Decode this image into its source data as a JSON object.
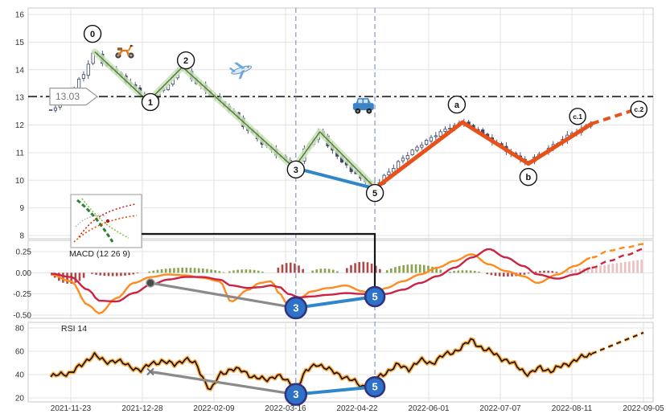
{
  "app": {
    "name": "stock-wave-annotation-chart"
  },
  "price_line": {
    "label": "13.03",
    "value": 13.03
  },
  "panels": {
    "macd_title": "MACD (12 26 9)",
    "rsi_title": "RSI 14"
  },
  "colors": {
    "candle": "#3b4668",
    "green_band": "#cde3bc",
    "green_edge": "#557f3a",
    "blue": "#2f86c8",
    "orange_wave": "#e8521a",
    "macd_fast": "#ff8a1e",
    "macd_signal": "#cc2244",
    "hist_red": "#aa3333",
    "hist_green": "#7a9a3a",
    "hist_pink": "#dd8888",
    "marker_fill": "#2e72c8",
    "marker_ring": "#33307e",
    "gray": "#8a8a8a",
    "grid": "#e3e3e3",
    "border": "#c8c8c8",
    "vline": "#8897bb",
    "rsi_glow": "#ffa028",
    "hline": "#222222"
  },
  "axes": {
    "x_ticks": [
      {
        "label": "2021-11-23",
        "t": 0
      },
      {
        "label": "2021-12-28",
        "t": 12.5
      },
      {
        "label": "2022-02-09",
        "t": 25
      },
      {
        "label": "2022-03-16",
        "t": 37.5
      },
      {
        "label": "2022-04-22",
        "t": 50
      },
      {
        "label": "2022-06-01",
        "t": 62.5
      },
      {
        "label": "2022-07-07",
        "t": 75
      },
      {
        "label": "2022-08-11",
        "t": 87.5
      },
      {
        "label": "2022-09-05",
        "t": 100
      }
    ],
    "price_ticks": [
      {
        "label": "16",
        "v": 16
      },
      {
        "label": "15",
        "v": 15
      },
      {
        "label": "14",
        "v": 14
      },
      {
        "label": "13",
        "v": 13
      },
      {
        "label": "12",
        "v": 12
      },
      {
        "label": "11",
        "v": 11
      },
      {
        "label": "10",
        "v": 10
      },
      {
        "label": "9",
        "v": 9
      },
      {
        "label": "8",
        "v": 8
      }
    ],
    "macd_ticks": [
      {
        "label": "0.25",
        "v": 0.25
      },
      {
        "label": "0.00",
        "v": 0
      },
      {
        "label": "-0.25",
        "v": -0.25
      },
      {
        "label": "-0.50",
        "v": -0.5
      }
    ],
    "rsi_ticks": [
      {
        "label": "80",
        "v": 80
      },
      {
        "label": "60",
        "v": 60
      },
      {
        "label": "40",
        "v": 40
      },
      {
        "label": "20",
        "v": 20
      }
    ]
  },
  "chart_data": [
    {
      "type": "candlestick",
      "panel": "price",
      "x_axis": {
        "unit": "t = % of axis from 2021-11-23 (0) to 2022-09-05 (100)",
        "ticks": [
          "2021-11-23",
          "2021-12-28",
          "2022-02-09",
          "2022-03-16",
          "2022-04-22",
          "2022-06-01",
          "2022-07-07",
          "2022-08-11",
          "2022-09-05"
        ]
      },
      "ylim": [
        8,
        16
      ],
      "yticks": [
        16,
        15,
        14,
        13,
        12,
        11,
        10,
        9,
        8
      ],
      "hline": 13.03,
      "close_path": {
        "t": [
          -3.5,
          0,
          2,
          4.2,
          6,
          8,
          10,
          13.5,
          16,
          19.5,
          22,
          25,
          28,
          31,
          34,
          36.5,
          39,
          41.5,
          43.5,
          45.5,
          47.5,
          49.5,
          51.5,
          53,
          55.5,
          58,
          60.5,
          63,
          65.5,
          68.4,
          71,
          74,
          77,
          79.5,
          82,
          84.5,
          87.5,
          91
        ],
        "price": [
          12.55,
          13.1,
          13.8,
          14.65,
          14.15,
          13.9,
          13.5,
          12.85,
          13.3,
          14.1,
          13.5,
          13.0,
          12.5,
          11.8,
          11.25,
          10.85,
          10.45,
          11.3,
          11.75,
          11.1,
          10.65,
          10.25,
          9.95,
          9.75,
          10.3,
          10.8,
          11.2,
          11.55,
          11.85,
          12.1,
          11.8,
          11.35,
          10.95,
          10.65,
          10.95,
          11.3,
          11.7,
          12.05
        ]
      },
      "pivots": [
        {
          "label": "0",
          "date": "2021-12-06",
          "price": 14.65
        },
        {
          "label": "1",
          "date": "2021-12-28",
          "price": 12.85
        },
        {
          "label": "2",
          "date": "2022-01-12",
          "price": 14.1
        },
        {
          "label": "3",
          "date": "2022-03-16",
          "price": 10.45
        },
        {
          "label": "5",
          "date": "2022-04-22",
          "price": 9.75
        },
        {
          "label": "a",
          "date": "2022-06-08",
          "price": 12.1
        },
        {
          "label": "b",
          "date": "2022-07-07",
          "price": 10.6
        },
        {
          "label": "c.1",
          "date": "2022-08-11",
          "price": 12.05
        },
        {
          "label": "c.2",
          "date": "2022-09-05",
          "price": 12.6
        }
      ],
      "overlays": {
        "green_path": [
          [
            4.2,
            14.65
          ],
          [
            13.5,
            12.85
          ],
          [
            19.5,
            14.1
          ],
          [
            39,
            10.45
          ],
          [
            43.5,
            11.75
          ],
          [
            53,
            9.75
          ]
        ],
        "blue_path": [
          [
            39,
            10.45
          ],
          [
            53.1,
            9.7
          ]
        ],
        "orange_solid": [
          [
            53.1,
            9.7
          ],
          [
            68.4,
            12.1
          ],
          [
            79.9,
            10.6
          ],
          [
            91,
            12.05
          ]
        ],
        "orange_dashed": [
          [
            91,
            12.05
          ],
          [
            99.5,
            12.62
          ]
        ]
      }
    },
    {
      "type": "line",
      "panel": "macd",
      "title": "MACD (12 26 9)",
      "ylim": [
        -0.55,
        0.37
      ],
      "yticks": [
        0.25,
        0,
        -0.25,
        -0.5
      ],
      "solid_until_t": 91,
      "t": [
        -3.5,
        0,
        3,
        5,
        8,
        11,
        14,
        17,
        20,
        23,
        26,
        28,
        31,
        33,
        35,
        36.5,
        38,
        40,
        42,
        45,
        48,
        51,
        53,
        55,
        58,
        61,
        64,
        67,
        70,
        73,
        76,
        79,
        81.5,
        85,
        88,
        91,
        94,
        97,
        100
      ],
      "series": [
        {
          "name": "macd",
          "color": "#ff8a1e",
          "values": [
            -0.02,
            -0.1,
            -0.38,
            -0.48,
            -0.3,
            -0.12,
            -0.05,
            -0.02,
            -0.03,
            -0.06,
            -0.1,
            -0.34,
            -0.2,
            -0.12,
            -0.1,
            -0.25,
            -0.39,
            -0.3,
            -0.22,
            -0.18,
            -0.15,
            -0.22,
            -0.26,
            -0.18,
            -0.1,
            -0.02,
            0.06,
            0.14,
            0.22,
            0.1,
            0.02,
            -0.04,
            -0.12,
            -0.02,
            0.08,
            0.18,
            0.26,
            0.3,
            0.34
          ]
        },
        {
          "name": "signal",
          "color": "#cc2244",
          "values": [
            -0.01,
            -0.05,
            -0.2,
            -0.33,
            -0.34,
            -0.24,
            -0.14,
            -0.08,
            -0.05,
            -0.05,
            -0.08,
            -0.15,
            -0.18,
            -0.17,
            -0.15,
            -0.17,
            -0.25,
            -0.29,
            -0.28,
            -0.26,
            -0.24,
            -0.25,
            -0.27,
            -0.25,
            -0.2,
            -0.12,
            -0.04,
            0.06,
            0.18,
            0.28,
            0.18,
            0.08,
            -0.02,
            -0.07,
            -0.02,
            0.06,
            0.14,
            0.21,
            0.28
          ]
        }
      ],
      "histogram": [
        {
          "t0": -3.5,
          "t1": 3,
          "peak": -0.13,
          "color": "#aa3333"
        },
        {
          "t0": 3,
          "t1": 12,
          "peak": -0.04,
          "color": "#aa3333"
        },
        {
          "t0": 13,
          "t1": 27,
          "peak": 0.06,
          "color": "#7a9a3a"
        },
        {
          "t0": 27,
          "t1": 34,
          "peak": 0.04,
          "color": "#7a9a3a"
        },
        {
          "t0": 35.5,
          "t1": 41,
          "peak": 0.12,
          "color": "#aa3333"
        },
        {
          "t0": 41.5,
          "t1": 47,
          "peak": 0.05,
          "color": "#7a9a3a"
        },
        {
          "t0": 47.5,
          "t1": 54.5,
          "peak": 0.13,
          "color": "#aa3333"
        },
        {
          "t0": 54.5,
          "t1": 65.5,
          "peak": 0.1,
          "color": "#7a9a3a"
        },
        {
          "t0": 65.5,
          "t1": 72,
          "peak": 0.03,
          "color": "#7a9a3a"
        },
        {
          "t0": 72,
          "t1": 80.3,
          "peak": -0.045,
          "color": "#aa3333"
        },
        {
          "t0": 80.5,
          "t1": 85.5,
          "peak": 0.025,
          "color": "#aa3333"
        },
        {
          "t0": 86,
          "t1": 100,
          "v0": 0.02,
          "v1": 0.16,
          "ramp": true,
          "color": "#dd8888"
        }
      ]
    },
    {
      "type": "line",
      "panel": "rsi",
      "title": "RSI 14",
      "ylim": [
        15,
        85
      ],
      "yticks": [
        80,
        60,
        40,
        20
      ],
      "solid_until_t": 91,
      "t": [
        -3.5,
        0,
        2,
        4,
        6,
        8,
        10,
        12.5,
        14,
        16,
        18,
        20,
        22,
        23,
        24.5,
        26,
        28,
        30,
        32,
        34,
        36,
        38,
        39.5,
        41,
        43,
        45,
        47,
        49,
        51,
        53,
        55,
        57,
        59,
        61,
        63,
        65,
        67,
        68.5,
        70,
        72,
        74,
        76,
        78,
        80,
        82,
        84,
        86,
        88,
        90,
        91,
        94,
        97,
        100
      ],
      "series": [
        {
          "name": "rsi",
          "color": "#111111",
          "glow": "#ffa028",
          "values": [
            38,
            42,
            48,
            58,
            50,
            53,
            47,
            44,
            49,
            52,
            48,
            54,
            48,
            38,
            26,
            40,
            45,
            43,
            38,
            35,
            40,
            33,
            30,
            42,
            50,
            44,
            40,
            35,
            30,
            35,
            42,
            48,
            45,
            52,
            50,
            56,
            60,
            64,
            70,
            62,
            58,
            52,
            47,
            40,
            46,
            43,
            48,
            52,
            56,
            58,
            64,
            70,
            76
          ]
        }
      ]
    }
  ],
  "annotations": {
    "waves": [
      {
        "label": "0",
        "t": 3.8,
        "p": 15.3
      },
      {
        "label": "1",
        "t": 13.9,
        "p": 12.83
      },
      {
        "label": "2",
        "t": 20.1,
        "p": 14.34
      },
      {
        "label": "3",
        "t": 39.3,
        "p": 10.39
      },
      {
        "label": "5",
        "t": 53.1,
        "p": 9.54
      },
      {
        "label": "a",
        "t": 67.4,
        "p": 12.74
      },
      {
        "label": "b",
        "t": 79.9,
        "p": 10.12
      },
      {
        "label": "c.1",
        "t": 88.5,
        "p": 12.31
      },
      {
        "label": "c.2",
        "t": 99.2,
        "p": 12.57
      }
    ],
    "macd_markers": [
      {
        "label": "3",
        "t": 39.3,
        "v": -0.415,
        "r": 13
      },
      {
        "label": "5",
        "t": 53.1,
        "v": -0.282,
        "r": 12
      }
    ],
    "rsi_markers": [
      {
        "label": "3",
        "t": 39.3,
        "v": 23,
        "r": 13
      },
      {
        "label": "5",
        "t": 53.1,
        "v": 29.5,
        "r": 12
      }
    ],
    "macd_gray": {
      "from": [
        13.9,
        -0.12
      ],
      "to": [
        39.3,
        -0.415
      ]
    },
    "rsi_gray": {
      "from": [
        13.9,
        42.5
      ],
      "to": [
        39.3,
        23
      ]
    },
    "vlines_t": [
      39.3,
      53.1
    ],
    "icons": [
      {
        "name": "scooter-icon",
        "t": 9.4,
        "p": 14.72
      },
      {
        "name": "airplane-icon",
        "t": 29.8,
        "p": 13.99
      },
      {
        "name": "car-icon",
        "t": 51.1,
        "p": 12.65
      }
    ]
  }
}
